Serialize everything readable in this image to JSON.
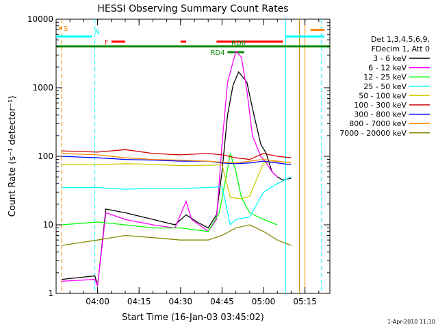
{
  "chart_data": {
    "type": "line",
    "title": "HESSI Observing Summary Count Rates",
    "xlabel": "Start Time (16-Jan-03 03:45:02)",
    "ylabel": "Count Rate (s⁻¹ detector⁻¹)",
    "y_scale": "log",
    "ylim": [
      1,
      10000
    ],
    "xlim": [
      "03:45",
      "05:24"
    ],
    "x_ticks": [
      "04:00",
      "04:15",
      "04:30",
      "04:45",
      "05:00",
      "05:15"
    ],
    "y_ticks": [
      "1",
      "10",
      "100",
      "1000",
      "10000"
    ],
    "footer": "1-Apr-2010 11:10",
    "legend": {
      "placement": "right",
      "header": [
        "Det 1,3,4,5,6,9,",
        "FDecim 1, Att 0"
      ]
    },
    "series": [
      {
        "name": "3 - 6 keV",
        "color": "#000000",
        "points": [
          [
            "03:47",
            1.6
          ],
          [
            "03:59",
            1.8
          ],
          [
            "04:00",
            1.3
          ],
          [
            "04:03",
            17
          ],
          [
            "04:10",
            15
          ],
          [
            "04:20",
            12
          ],
          [
            "04:28",
            10
          ],
          [
            "04:32",
            14
          ],
          [
            "04:36",
            11
          ],
          [
            "04:40",
            9
          ],
          [
            "04:43",
            14
          ],
          [
            "04:45",
            60
          ],
          [
            "04:47",
            400
          ],
          [
            "04:49",
            1100
          ],
          [
            "04:51",
            1700
          ],
          [
            "04:54",
            1200
          ],
          [
            "04:56",
            500
          ],
          [
            "04:59",
            150
          ],
          [
            "05:01",
            110
          ],
          [
            "05:03",
            60
          ],
          [
            "05:05",
            50
          ],
          [
            "05:07",
            45
          ],
          [
            "05:10",
            48
          ]
        ]
      },
      {
        "name": "6 - 12 keV",
        "color": "#ff00ff",
        "points": [
          [
            "03:47",
            1.5
          ],
          [
            "03:59",
            1.6
          ],
          [
            "04:00",
            1.3
          ],
          [
            "04:03",
            15
          ],
          [
            "04:10",
            12
          ],
          [
            "04:20",
            10
          ],
          [
            "04:28",
            9
          ],
          [
            "04:32",
            22
          ],
          [
            "04:34",
            12
          ],
          [
            "04:40",
            8
          ],
          [
            "04:43",
            12
          ],
          [
            "04:45",
            150
          ],
          [
            "04:47",
            1200
          ],
          [
            "04:50",
            3400
          ],
          [
            "04:52",
            2800
          ],
          [
            "04:54",
            900
          ],
          [
            "04:56",
            200
          ],
          [
            "04:59",
            100
          ],
          [
            "05:01",
            80
          ],
          [
            "05:03",
            60
          ],
          [
            "05:05",
            50
          ]
        ]
      },
      {
        "name": "12 - 25 keV",
        "color": "#00ff00",
        "points": [
          [
            "03:47",
            10
          ],
          [
            "04:00",
            11
          ],
          [
            "04:10",
            10
          ],
          [
            "04:20",
            9
          ],
          [
            "04:30",
            9
          ],
          [
            "04:40",
            8
          ],
          [
            "04:44",
            15
          ],
          [
            "04:46",
            40
          ],
          [
            "04:48",
            110
          ],
          [
            "04:50",
            60
          ],
          [
            "04:52",
            25
          ],
          [
            "04:55",
            15
          ],
          [
            "05:00",
            12
          ],
          [
            "05:05",
            10
          ]
        ]
      },
      {
        "name": "25 - 50 keV",
        "color": "#00ffff",
        "points": [
          [
            "03:47",
            35
          ],
          [
            "04:00",
            35
          ],
          [
            "04:10",
            33
          ],
          [
            "04:20",
            34
          ],
          [
            "04:30",
            34
          ],
          [
            "04:40",
            35
          ],
          [
            "04:45",
            36
          ],
          [
            "04:48",
            10
          ],
          [
            "04:50",
            12
          ],
          [
            "04:55",
            13
          ],
          [
            "05:00",
            30
          ],
          [
            "05:05",
            40
          ],
          [
            "05:10",
            50
          ]
        ]
      },
      {
        "name": "50 - 100 keV",
        "color": "#cccc00",
        "points": [
          [
            "03:47",
            75
          ],
          [
            "04:00",
            75
          ],
          [
            "04:10",
            78
          ],
          [
            "04:20",
            76
          ],
          [
            "04:30",
            73
          ],
          [
            "04:40",
            74
          ],
          [
            "04:45",
            75
          ],
          [
            "04:48",
            25
          ],
          [
            "04:52",
            24
          ],
          [
            "04:55",
            26
          ],
          [
            "05:00",
            80
          ],
          [
            "05:05",
            85
          ],
          [
            "05:10",
            80
          ]
        ]
      },
      {
        "name": "100 - 300 keV",
        "color": "#cc0000",
        "points": [
          [
            "03:47",
            120
          ],
          [
            "04:00",
            115
          ],
          [
            "04:10",
            125
          ],
          [
            "04:20",
            110
          ],
          [
            "04:30",
            105
          ],
          [
            "04:40",
            110
          ],
          [
            "04:45",
            105
          ],
          [
            "04:50",
            95
          ],
          [
            "04:55",
            90
          ],
          [
            "05:00",
            110
          ],
          [
            "05:05",
            100
          ],
          [
            "05:10",
            95
          ]
        ]
      },
      {
        "name": "300 - 800 keV",
        "color": "#0000ff",
        "points": [
          [
            "03:47",
            100
          ],
          [
            "04:00",
            95
          ],
          [
            "04:10",
            90
          ],
          [
            "04:20",
            88
          ],
          [
            "04:30",
            85
          ],
          [
            "04:40",
            85
          ],
          [
            "04:45",
            80
          ],
          [
            "04:50",
            78
          ],
          [
            "04:55",
            80
          ],
          [
            "05:00",
            85
          ],
          [
            "05:05",
            80
          ],
          [
            "05:10",
            75
          ]
        ]
      },
      {
        "name": "800 - 7000 keV",
        "color": "#ff8800",
        "points": [
          [
            "03:47",
            110
          ],
          [
            "04:00",
            105
          ],
          [
            "04:10",
            95
          ],
          [
            "04:20",
            90
          ],
          [
            "04:30",
            88
          ],
          [
            "04:40",
            85
          ],
          [
            "04:45",
            82
          ],
          [
            "04:50",
            80
          ],
          [
            "04:55",
            85
          ],
          [
            "05:00",
            90
          ],
          [
            "05:05",
            85
          ],
          [
            "05:10",
            80
          ]
        ]
      },
      {
        "name": "7000 - 20000 keV",
        "color": "#888800",
        "points": [
          [
            "03:47",
            5
          ],
          [
            "04:00",
            6
          ],
          [
            "04:10",
            7
          ],
          [
            "04:20",
            6.5
          ],
          [
            "04:30",
            6
          ],
          [
            "04:40",
            6
          ],
          [
            "04:45",
            7
          ],
          [
            "04:50",
            9
          ],
          [
            "04:55",
            10
          ],
          [
            "05:00",
            8
          ],
          [
            "05:05",
            6
          ],
          [
            "05:10",
            5
          ]
        ]
      }
    ],
    "flags": [
      {
        "label": "S",
        "color": "#ff8800",
        "y": 7400,
        "start": "03:46",
        "end": "03:47"
      },
      {
        "label": "",
        "color": "#ff8800",
        "y": 7000,
        "start": "05:17",
        "end": "05:22"
      },
      {
        "label": "N",
        "color": "#00ffff",
        "y": 5600,
        "start": "03:45",
        "end": "03:58"
      },
      {
        "label": "",
        "color": "#00ffff",
        "y": 5600,
        "start": "05:08",
        "end": "05:22"
      },
      {
        "label": "F",
        "color": "#ff0000",
        "y": 4700,
        "start": "04:05",
        "end": "04:10"
      },
      {
        "label": "",
        "color": "#ff0000",
        "y": 4700,
        "start": "04:30",
        "end": "04:32"
      },
      {
        "label": "",
        "color": "#ff0000",
        "y": 4700,
        "start": "04:43",
        "end": "05:07"
      },
      {
        "label": "RD0",
        "color": "#008800",
        "y": 4000,
        "start": "03:45",
        "end": "05:24"
      },
      {
        "label": "RD4",
        "color": "#008800",
        "y": 3300,
        "start": "04:47",
        "end": "04:53"
      }
    ],
    "vertical_markers": [
      {
        "color": "#ff8800",
        "x": "03:47",
        "style": "dashed"
      },
      {
        "color": "#00ffff",
        "x": "03:59",
        "style": "dashed"
      },
      {
        "color": "#00ffff",
        "x": "05:08",
        "style": "solid"
      },
      {
        "color": "#cc8800",
        "x": "05:13",
        "style": "solid"
      },
      {
        "color": "#ff8800",
        "x": "05:15",
        "style": "solid"
      },
      {
        "color": "#00ffff",
        "x": "05:21",
        "style": "dashed"
      }
    ]
  }
}
